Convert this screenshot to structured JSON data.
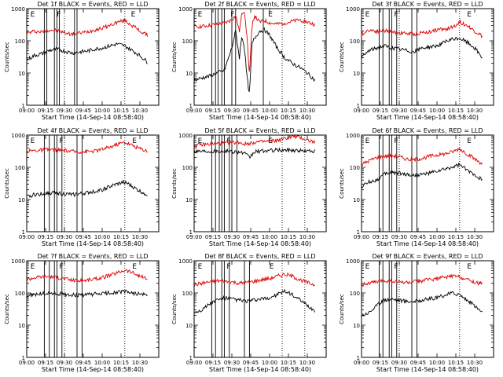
{
  "figure": {
    "x_tick_labels": [
      "09:00",
      "09:15",
      "09:30",
      "09:45",
      "10:00",
      "10:15",
      "10:30"
    ],
    "x_axis_label": "Start Time (14-Sep-14 08:58:40)",
    "y_axis_label": "Counts/sec",
    "y_tick_labels": [
      "1",
      "10",
      "100",
      "1000"
    ],
    "colors": {
      "events": "#000000",
      "lld": "#dd0000",
      "axes": "#000000",
      "background": "#ffffff"
    }
  },
  "chart_data": [
    {
      "type": "line",
      "title": "Det 1f BLACK = Events, RED = LLD",
      "xlabel": "Start Time (14-Sep-14 08:58:40)",
      "ylabel": "Counts/sec",
      "ylim": [
        1,
        1000
      ],
      "log_y": true,
      "x_minutes": [
        0,
        6,
        12,
        18,
        24,
        30,
        36,
        42,
        48,
        54,
        60,
        66,
        72,
        78,
        84,
        90,
        96
      ],
      "series": [
        {
          "name": "LLD",
          "color": "#dd0000",
          "values": [
            170,
            200,
            190,
            220,
            210,
            180,
            160,
            175,
            190,
            220,
            250,
            300,
            380,
            430,
            300,
            200,
            150
          ]
        },
        {
          "name": "Events",
          "color": "#000000",
          "values": [
            25,
            35,
            40,
            50,
            55,
            48,
            42,
            45,
            48,
            55,
            60,
            70,
            80,
            70,
            50,
            35,
            22
          ]
        }
      ],
      "markers": {
        "solid": [
          14,
          16,
          22,
          24,
          26,
          38,
          40
        ],
        "dotted": [
          30,
          78
        ],
        "labels": [
          {
            "x": 1,
            "t": "E"
          },
          {
            "x": 22,
            "t": "F"
          },
          {
            "x": 81,
            "t": "E"
          }
        ]
      }
    },
    {
      "type": "line",
      "title": "Det 2f BLACK = Events, RED = LLD",
      "xlabel": "Start Time (14-Sep-14 08:58:40)",
      "ylabel": "Counts/sec",
      "ylim": [
        1,
        1000
      ],
      "log_y": true,
      "x_minutes": [
        0,
        6,
        12,
        18,
        24,
        30,
        33,
        36,
        38,
        40,
        42,
        44,
        46,
        48,
        52,
        56,
        60,
        66,
        72,
        78,
        84,
        90,
        96
      ],
      "series": [
        {
          "name": "LLD",
          "color": "#dd0000",
          "values": [
            280,
            280,
            300,
            330,
            350,
            450,
            600,
            200,
            700,
            900,
            150,
            8,
            300,
            600,
            380,
            420,
            360,
            330,
            360,
            400,
            450,
            380,
            320
          ]
        },
        {
          "name": "Events",
          "color": "#000000",
          "values": [
            6,
            7,
            8,
            10,
            12,
            60,
            200,
            30,
            150,
            60,
            8,
            2,
            80,
            120,
            200,
            220,
            150,
            60,
            30,
            20,
            15,
            10,
            6
          ]
        }
      ],
      "markers": {
        "solid": [
          14,
          17,
          19,
          22,
          24,
          30,
          33,
          55
        ],
        "dotted": [
          70,
          88
        ],
        "labels": [
          {
            "x": 1,
            "t": "E"
          },
          {
            "x": 27,
            "t": "F"
          },
          {
            "x": 57,
            "t": "E"
          }
        ]
      }
    },
    {
      "type": "line",
      "title": "Det 3f BLACK = Events, RED = LLD",
      "xlabel": "Start Time (14-Sep-14 08:58:40)",
      "ylabel": "Counts/sec",
      "ylim": [
        1,
        1000
      ],
      "log_y": true,
      "x_minutes": [
        0,
        6,
        12,
        18,
        24,
        30,
        36,
        42,
        48,
        54,
        60,
        66,
        72,
        78,
        84,
        90,
        96
      ],
      "series": [
        {
          "name": "LLD",
          "color": "#dd0000",
          "values": [
            160,
            220,
            200,
            210,
            190,
            180,
            170,
            160,
            180,
            190,
            220,
            230,
            260,
            380,
            300,
            200,
            140
          ]
        },
        {
          "name": "Events",
          "color": "#000000",
          "values": [
            30,
            50,
            60,
            70,
            60,
            55,
            50,
            45,
            60,
            65,
            70,
            90,
            110,
            120,
            90,
            60,
            30
          ]
        }
      ],
      "markers": {
        "solid": [
          14,
          17,
          22,
          24,
          28,
          40,
          44
        ],
        "dotted": [
          30,
          78
        ],
        "labels": [
          {
            "x": 1,
            "t": "E"
          },
          {
            "x": 24,
            "t": "F"
          },
          {
            "x": 82,
            "t": "E"
          }
        ]
      }
    },
    {
      "type": "line",
      "title": "Det 4f BLACK = Events, RED = LLD",
      "xlabel": "Start Time (14-Sep-14 08:58:40)",
      "ylabel": "Counts/sec",
      "ylim": [
        1,
        1000
      ],
      "log_y": true,
      "x_minutes": [
        0,
        6,
        12,
        18,
        24,
        30,
        36,
        42,
        48,
        54,
        60,
        66,
        72,
        78,
        84,
        90,
        96
      ],
      "series": [
        {
          "name": "LLD",
          "color": "#dd0000",
          "values": [
            320,
            330,
            340,
            350,
            340,
            330,
            310,
            300,
            310,
            320,
            360,
            420,
            520,
            600,
            480,
            380,
            320
          ]
        },
        {
          "name": "Events",
          "color": "#000000",
          "values": [
            12,
            14,
            15,
            16,
            16,
            15,
            14,
            15,
            16,
            18,
            20,
            25,
            30,
            35,
            25,
            18,
            14
          ]
        }
      ],
      "markers": {
        "solid": [
          14,
          18,
          22,
          24,
          28,
          40,
          44
        ],
        "dotted": [
          30,
          78
        ],
        "labels": [
          {
            "x": 1,
            "t": "E"
          },
          {
            "x": 24,
            "t": "F"
          },
          {
            "x": 82,
            "t": "E"
          }
        ]
      }
    },
    {
      "type": "line",
      "title": "Det 5f BLACK = Events, RED = LLD",
      "xlabel": "Start Time (14-Sep-14 08:58:40)",
      "ylabel": "Counts/sec",
      "ylim": [
        1,
        1000
      ],
      "log_y": true,
      "x_minutes": [
        0,
        6,
        12,
        18,
        24,
        30,
        36,
        40,
        44,
        48,
        54,
        60,
        66,
        72,
        78,
        84,
        90,
        96
      ],
      "series": [
        {
          "name": "LLD",
          "color": "#dd0000",
          "values": [
            480,
            500,
            520,
            540,
            560,
            580,
            600,
            520,
            560,
            600,
            620,
            640,
            680,
            780,
            900,
            850,
            700,
            600
          ]
        },
        {
          "name": "Events",
          "color": "#000000",
          "values": [
            320,
            320,
            320,
            320,
            320,
            310,
            300,
            270,
            200,
            300,
            320,
            330,
            340,
            340,
            340,
            330,
            320,
            320
          ]
        }
      ],
      "markers": {
        "solid": [
          14,
          17,
          20,
          22,
          24,
          28,
          30,
          34
        ],
        "dotted": [
          70,
          88
        ],
        "labels": [
          {
            "x": 1,
            "t": "E"
          },
          {
            "x": 24,
            "t": "F"
          },
          {
            "x": 57,
            "t": "E"
          }
        ]
      }
    },
    {
      "type": "line",
      "title": "Det 6f BLACK = Events, RED = LLD",
      "xlabel": "Start Time (14-Sep-14 08:58:40)",
      "ylabel": "Counts/sec",
      "ylim": [
        1,
        1000
      ],
      "log_y": true,
      "x_minutes": [
        0,
        6,
        12,
        18,
        24,
        30,
        36,
        42,
        48,
        54,
        60,
        66,
        72,
        78,
        84,
        90,
        96
      ],
      "series": [
        {
          "name": "LLD",
          "color": "#dd0000",
          "values": [
            120,
            160,
            200,
            220,
            230,
            210,
            180,
            170,
            190,
            220,
            240,
            260,
            300,
            380,
            260,
            180,
            130
          ]
        },
        {
          "name": "Events",
          "color": "#000000",
          "values": [
            25,
            35,
            40,
            60,
            70,
            65,
            60,
            55,
            60,
            65,
            75,
            85,
            100,
            120,
            80,
            60,
            40
          ]
        }
      ],
      "markers": {
        "solid": [
          14,
          17,
          22,
          24,
          28,
          40,
          44
        ],
        "dotted": [
          30,
          78
        ],
        "labels": [
          {
            "x": 1,
            "t": "E"
          },
          {
            "x": 24,
            "t": "F"
          },
          {
            "x": 82,
            "t": "E"
          }
        ]
      }
    },
    {
      "type": "line",
      "title": "Det 7f BLACK = Events, RED = LLD",
      "xlabel": "Start Time (14-Sep-14 08:58:40)",
      "ylabel": "Counts/sec",
      "ylim": [
        1,
        1000
      ],
      "log_y": true,
      "x_minutes": [
        0,
        6,
        12,
        18,
        24,
        30,
        36,
        42,
        48,
        54,
        60,
        66,
        72,
        78,
        84,
        90,
        96
      ],
      "series": [
        {
          "name": "LLD",
          "color": "#dd0000",
          "values": [
            260,
            300,
            320,
            330,
            300,
            280,
            250,
            240,
            250,
            270,
            300,
            350,
            420,
            520,
            430,
            330,
            270
          ]
        },
        {
          "name": "Events",
          "color": "#000000",
          "values": [
            80,
            90,
            95,
            100,
            95,
            90,
            88,
            85,
            88,
            92,
            95,
            100,
            105,
            110,
            100,
            92,
            85
          ]
        }
      ],
      "markers": {
        "solid": [
          14,
          18,
          22,
          24,
          28,
          40,
          44
        ],
        "dotted": [
          30,
          78
        ],
        "labels": [
          {
            "x": 1,
            "t": "E"
          },
          {
            "x": 24,
            "t": "F"
          },
          {
            "x": 82,
            "t": "E"
          }
        ]
      }
    },
    {
      "type": "line",
      "title": "Det 8f BLACK = Events, RED = LLD",
      "xlabel": "Start Time (14-Sep-14 08:58:40)",
      "ylabel": "Counts/sec",
      "ylim": [
        1,
        1000
      ],
      "log_y": true,
      "x_minutes": [
        0,
        6,
        12,
        18,
        24,
        30,
        36,
        42,
        48,
        54,
        60,
        66,
        72,
        78,
        84,
        90,
        96
      ],
      "series": [
        {
          "name": "LLD",
          "color": "#dd0000",
          "values": [
            180,
            200,
            220,
            240,
            230,
            220,
            200,
            210,
            230,
            260,
            280,
            330,
            380,
            330,
            260,
            210,
            180
          ]
        },
        {
          "name": "Events",
          "color": "#000000",
          "values": [
            25,
            30,
            45,
            60,
            70,
            65,
            60,
            55,
            60,
            65,
            70,
            90,
            110,
            90,
            60,
            40,
            28
          ]
        }
      ],
      "markers": {
        "solid": [
          14,
          17,
          22,
          24,
          28,
          40,
          44
        ],
        "dotted": [
          70,
          88
        ],
        "labels": [
          {
            "x": 1,
            "t": "E"
          },
          {
            "x": 24,
            "t": "F"
          },
          {
            "x": 58,
            "t": "E"
          }
        ]
      }
    },
    {
      "type": "line",
      "title": "Det 9f BLACK = Events, RED = LLD",
      "xlabel": "Start Time (14-Sep-14 08:58:40)",
      "ylabel": "Counts/sec",
      "ylim": [
        1,
        1000
      ],
      "log_y": true,
      "x_minutes": [
        0,
        6,
        12,
        18,
        24,
        30,
        36,
        42,
        48,
        54,
        60,
        66,
        72,
        78,
        84,
        90,
        96
      ],
      "series": [
        {
          "name": "LLD",
          "color": "#dd0000",
          "values": [
            180,
            200,
            220,
            240,
            230,
            220,
            210,
            220,
            240,
            260,
            280,
            300,
            340,
            320,
            260,
            220,
            190
          ]
        },
        {
          "name": "Events",
          "color": "#000000",
          "values": [
            20,
            25,
            40,
            60,
            65,
            60,
            55,
            55,
            60,
            65,
            70,
            85,
            100,
            90,
            60,
            40,
            25
          ]
        }
      ],
      "markers": {
        "solid": [
          14,
          17,
          22,
          24,
          28,
          40,
          44
        ],
        "dotted": [
          30,
          78
        ],
        "labels": [
          {
            "x": 1,
            "t": "E"
          },
          {
            "x": 24,
            "t": "F"
          },
          {
            "x": 82,
            "t": "E"
          }
        ]
      }
    }
  ]
}
